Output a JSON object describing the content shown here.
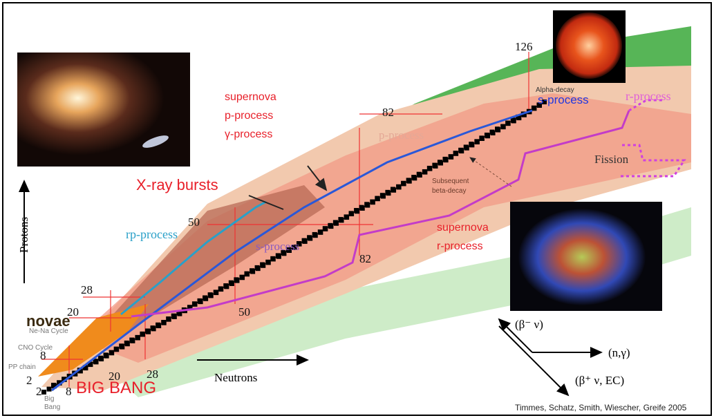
{
  "axes": {
    "protons": "Protons",
    "neutrons": "Neutrons"
  },
  "magic": {
    "z126": 126,
    "z82": 82,
    "z50": 50,
    "z28": 28,
    "z20": 20,
    "z8": 8,
    "z2": 2,
    "n2": 2,
    "n8": 8,
    "n20": 20,
    "n28": 28,
    "n50": 50,
    "n82": 82
  },
  "processes": {
    "supernova_p": [
      "supernova",
      "p-process",
      "γ-process"
    ],
    "xray_bursts": "X-ray bursts",
    "p_process": "p-process",
    "alpha_decay": "Alpha-decay",
    "s_process_top": "s-process",
    "r_process": "r-process",
    "fission": "Fission",
    "subsequent": [
      "Subsequent",
      "beta-decay"
    ],
    "rp_process": "rp-process",
    "s_process_mid": "s-process",
    "supernova_r": [
      "supernova",
      "r-process"
    ],
    "novae": "novae",
    "ne_na": "Ne-Na Cycle",
    "cno": "CNO Cycle",
    "pp": "PP chain",
    "big_bang_small": [
      "Big",
      "Bang"
    ],
    "big_bang": "BIG BANG"
  },
  "reactions": [
    "(β⁻ ν)",
    "(n,γ)",
    "(β⁺ ν, EC)"
  ],
  "credit": "Timmes, Schatz, Smith, Wiescher, Greife 2005"
}
